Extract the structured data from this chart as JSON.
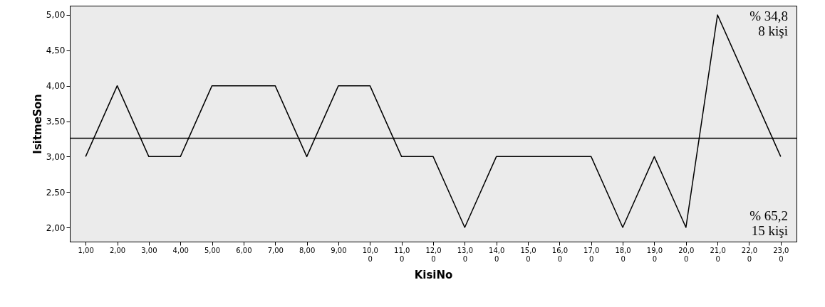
{
  "chart_data": {
    "type": "line",
    "xlabel": "KisiNo",
    "ylabel": "IsitmeSon",
    "categories": [
      "1,00",
      "2,00",
      "3,00",
      "4,00",
      "5,00",
      "6,00",
      "7,00",
      "8,00",
      "9,00",
      "10,00",
      "11,00",
      "12,00",
      "13,00",
      "14,00",
      "15,00",
      "16,00",
      "17,00",
      "18,00",
      "19,00",
      "20,00",
      "21,00",
      "22,00",
      "23,00"
    ],
    "series": [
      {
        "color": "#000000",
        "values": [
          3,
          4,
          3,
          3,
          4,
          4,
          4,
          3,
          4,
          4,
          3,
          3,
          2,
          3,
          3,
          3,
          3,
          2,
          3,
          2,
          5,
          4,
          3
        ]
      }
    ],
    "ylim": [
      1.8,
      5.13
    ],
    "yticks": [
      {
        "value": 2,
        "label": "2,00"
      },
      {
        "value": 2.5,
        "label": "2,50"
      },
      {
        "value": 3,
        "label": "3,00"
      },
      {
        "value": 3.5,
        "label": "3,50"
      },
      {
        "value": 4,
        "label": "4,00"
      },
      {
        "value": 4.5,
        "label": "4,50"
      },
      {
        "value": 5,
        "label": "5,00"
      }
    ],
    "ref_lines": [
      {
        "axis": "y",
        "value": 3.26,
        "color": "#000000"
      }
    ],
    "annotations": [
      "% 34,8\n8 kişi",
      "% 65,2\n15 kişi"
    ],
    "grid": false,
    "marker": "none",
    "line_style": "solid"
  }
}
